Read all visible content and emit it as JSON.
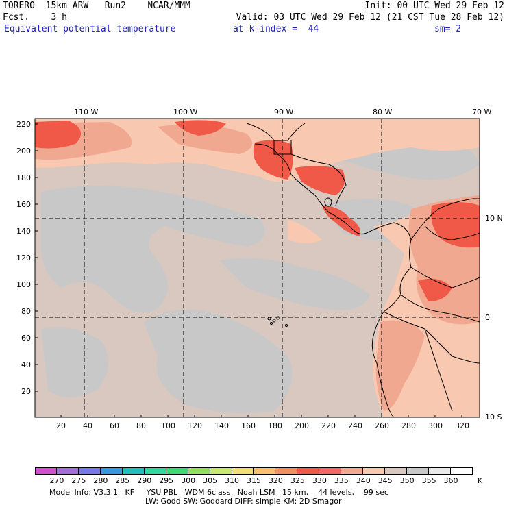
{
  "header": {
    "line1_left": "TORERO  15km ARW   Run2    NCAR/MMM",
    "line1_right": "Init: 00 UTC Wed 29 Feb 12",
    "line2_left": "Fcst.    3 h",
    "line2_right": "Valid: 03 UTC Wed 29 Feb 12 (21 CST Tue 28 Feb 12)",
    "field_name": "Equivalent potential temperature",
    "k_index_label": "at k-index =  44",
    "smoothing": "sm= 2"
  },
  "map": {
    "lon_labels": [
      "110 W",
      "100 W",
      "90 W",
      "80 W",
      "70 W"
    ],
    "lat_labels": [
      "10 N",
      "0",
      "10 S"
    ],
    "y_axis_ticks": [
      "220",
      "200",
      "180",
      "160",
      "140",
      "120",
      "100",
      "80",
      "60",
      "40",
      "20"
    ],
    "x_axis_ticks": [
      "20",
      "40",
      "60",
      "80",
      "100",
      "120",
      "140",
      "160",
      "180",
      "200",
      "220",
      "240",
      "260",
      "280",
      "300",
      "320"
    ]
  },
  "colorbar": {
    "units": "K",
    "labels": [
      "270",
      "275",
      "280",
      "285",
      "290",
      "295",
      "300",
      "305",
      "310",
      "315",
      "320",
      "325",
      "330",
      "335",
      "340",
      "345",
      "350",
      "355",
      "360"
    ],
    "colors": [
      "#d050d0",
      "#a070d8",
      "#7878e8",
      "#3898e0",
      "#20c0c0",
      "#30d8a0",
      "#40d870",
      "#90e060",
      "#c8e870",
      "#f0e078",
      "#f8c070",
      "#f09060",
      "#f05848",
      "#f06868",
      "#f0a890",
      "#f8c8b0",
      "#d8c8c0",
      "#c8c8c8",
      "#e8e8e8",
      "#ffffff"
    ]
  },
  "footer": {
    "line1": "Model Info: V3.3.1   KF     YSU PBL   WDM 6class   Noah LSM   15 km,    44 levels,    99 sec",
    "line2": "LW: Godd SW: Goddard DIFF: simple KM: 2D Smagor"
  }
}
